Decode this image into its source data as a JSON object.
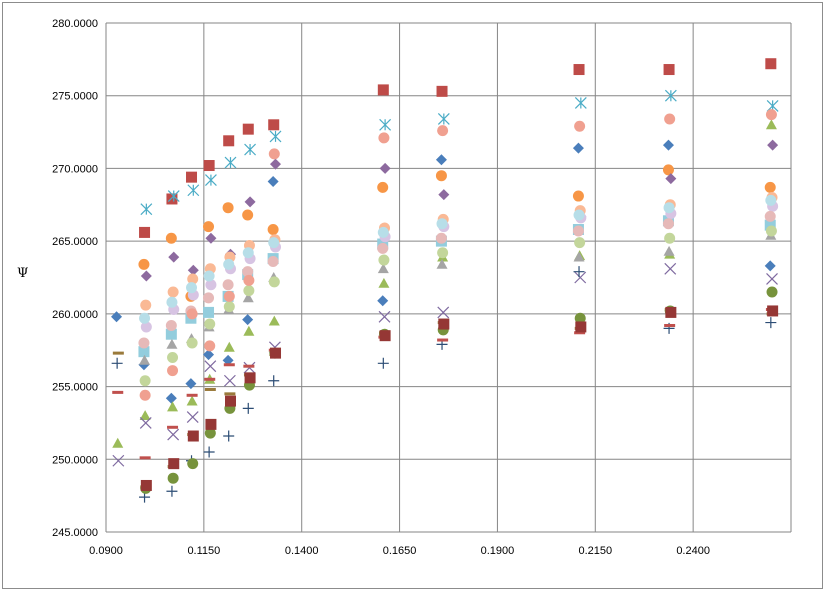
{
  "chart_data": {
    "type": "scatter",
    "title": "",
    "xlabel": "",
    "ylabel": "Ψ",
    "xlim": [
      0.09,
      0.265
    ],
    "ylim": [
      245,
      280
    ],
    "x_ticks": [
      "0.0900",
      "0.1150",
      "0.1400",
      "0.1650",
      "0.1900",
      "0.2150",
      "0.2400"
    ],
    "y_ticks": [
      "245.0000",
      "250.0000",
      "255.0000",
      "260.0000",
      "265.0000",
      "270.0000",
      "275.0000",
      "280.0000"
    ],
    "x_tick_values": [
      0.09,
      0.115,
      0.14,
      0.165,
      0.19,
      0.215,
      0.24
    ],
    "y_tick_values": [
      245,
      250,
      255,
      260,
      265,
      270,
      275,
      280
    ],
    "grid": "major gridlines on both axes",
    "legend": "none",
    "series_styles": [
      {
        "marker": "diamond",
        "color": "#4a7ebb"
      },
      {
        "marker": "square",
        "color": "#be4b48"
      },
      {
        "marker": "triangle",
        "color": "#9bbb59"
      },
      {
        "marker": "x",
        "color": "#7f6aa0"
      },
      {
        "marker": "asterisk",
        "color": "#4bacc6"
      },
      {
        "marker": "circle",
        "color": "#f79646"
      },
      {
        "marker": "plus",
        "color": "#2c4d75"
      },
      {
        "marker": "dash",
        "color": "#c0504d"
      },
      {
        "marker": "dash",
        "color": "#9a7a3b"
      },
      {
        "marker": "diamond",
        "color": "#8d6a9f"
      },
      {
        "marker": "square",
        "color": "#93cddd"
      },
      {
        "marker": "triangle",
        "color": "#a5a5a5"
      },
      {
        "marker": "circle",
        "color": "#c3d69b"
      },
      {
        "marker": "circle",
        "color": "#fab995"
      },
      {
        "marker": "circle",
        "color": "#d7c4e3"
      },
      {
        "marker": "circle",
        "color": "#e6b9b8"
      },
      {
        "marker": "circle",
        "color": "#b7dee8"
      },
      {
        "marker": "circle",
        "color": "#f0a090"
      },
      {
        "marker": "circle",
        "color": "#77933c"
      },
      {
        "marker": "square",
        "color": "#953735"
      }
    ],
    "x": [
      0.093,
      0.1,
      0.107,
      0.112,
      0.1165,
      0.1215,
      0.1265,
      0.133,
      0.161,
      0.176,
      0.211,
      0.234,
      0.26
    ],
    "series": [
      {
        "values": [
          259.8,
          256.5,
          254.2,
          255.2,
          257.2,
          256.8,
          259.6,
          269.1,
          260.9,
          270.6,
          271.4,
          271.6,
          263.3
        ]
      },
      {
        "values": [
          null,
          265.6,
          267.9,
          269.4,
          270.2,
          271.9,
          272.7,
          273.0,
          275.4,
          275.3,
          276.8,
          276.8,
          277.2
        ]
      },
      {
        "values": [
          251.1,
          253.0,
          253.6,
          254.0,
          255.5,
          257.7,
          258.8,
          259.5,
          262.1,
          263.9,
          264.0,
          264.1,
          273.0
        ]
      },
      {
        "values": [
          249.9,
          252.5,
          251.7,
          252.9,
          256.4,
          255.4,
          256.3,
          257.7,
          259.8,
          260.1,
          262.5,
          263.1,
          262.4
        ]
      },
      {
        "values": [
          null,
          267.2,
          268.1,
          268.5,
          269.2,
          270.4,
          271.3,
          272.2,
          273.0,
          273.4,
          274.5,
          275.0,
          274.3
        ]
      },
      {
        "values": [
          null,
          263.4,
          265.2,
          261.2,
          266.0,
          267.3,
          266.8,
          265.8,
          268.7,
          269.5,
          268.1,
          269.9,
          268.7
        ]
      },
      {
        "values": [
          256.6,
          247.4,
          247.8,
          249.9,
          250.5,
          251.6,
          253.5,
          255.4,
          256.6,
          257.9,
          262.9,
          259.0,
          259.4
        ]
      },
      {
        "values": [
          254.6,
          250.1,
          252.2,
          254.4,
          255.5,
          256.5,
          256.4,
          257.5,
          258.4,
          258.2,
          258.7,
          259.2,
          260.3
        ]
      },
      {
        "values": [
          257.3,
          248.1,
          249.5,
          251.7,
          254.8,
          254.5,
          255.8,
          257.2,
          258.7,
          259.4,
          259.0,
          260.3,
          260.0
        ]
      },
      {
        "values": [
          null,
          262.6,
          263.9,
          263.0,
          265.2,
          264.1,
          267.7,
          270.3,
          270.0,
          268.2,
          266.7,
          269.3,
          271.6
        ]
      },
      {
        "values": [
          null,
          257.4,
          258.6,
          259.7,
          260.1,
          261.2,
          262.7,
          263.8,
          264.8,
          265.0,
          265.8,
          266.4,
          266.1
        ]
      },
      {
        "values": [
          null,
          256.8,
          257.9,
          258.3,
          259.1,
          260.3,
          261.1,
          262.5,
          263.1,
          263.4,
          263.9,
          264.3,
          265.4
        ]
      },
      {
        "values": [
          null,
          255.4,
          257.0,
          258.0,
          259.3,
          260.5,
          261.6,
          262.2,
          263.7,
          264.2,
          264.9,
          265.2,
          265.7
        ]
      },
      {
        "values": [
          null,
          260.6,
          261.5,
          262.4,
          263.1,
          263.9,
          264.7,
          265.1,
          265.9,
          266.5,
          267.1,
          267.5,
          268.0
        ]
      },
      {
        "values": [
          null,
          259.1,
          260.3,
          261.3,
          262.0,
          263.1,
          263.8,
          264.6,
          265.3,
          266.0,
          266.6,
          266.9,
          267.4
        ]
      },
      {
        "values": [
          null,
          258.0,
          259.2,
          260.2,
          261.1,
          262.0,
          262.9,
          263.6,
          264.5,
          265.2,
          265.7,
          266.2,
          266.7
        ]
      },
      {
        "values": [
          null,
          259.7,
          260.8,
          261.8,
          262.6,
          263.4,
          264.2,
          264.9,
          265.6,
          266.2,
          266.8,
          267.3,
          267.8
        ]
      },
      {
        "values": [
          null,
          254.4,
          256.1,
          260.0,
          257.8,
          261.2,
          262.3,
          271.0,
          272.1,
          272.6,
          272.9,
          273.4,
          273.7
        ]
      },
      {
        "values": [
          null,
          248.0,
          248.7,
          249.7,
          251.8,
          253.5,
          255.1,
          257.3,
          258.6,
          258.9,
          259.7,
          260.2,
          261.5
        ]
      },
      {
        "values": [
          null,
          248.2,
          249.7,
          251.6,
          252.4,
          254.0,
          255.6,
          257.3,
          258.5,
          259.3,
          259.1,
          260.1,
          260.2
        ]
      }
    ]
  }
}
